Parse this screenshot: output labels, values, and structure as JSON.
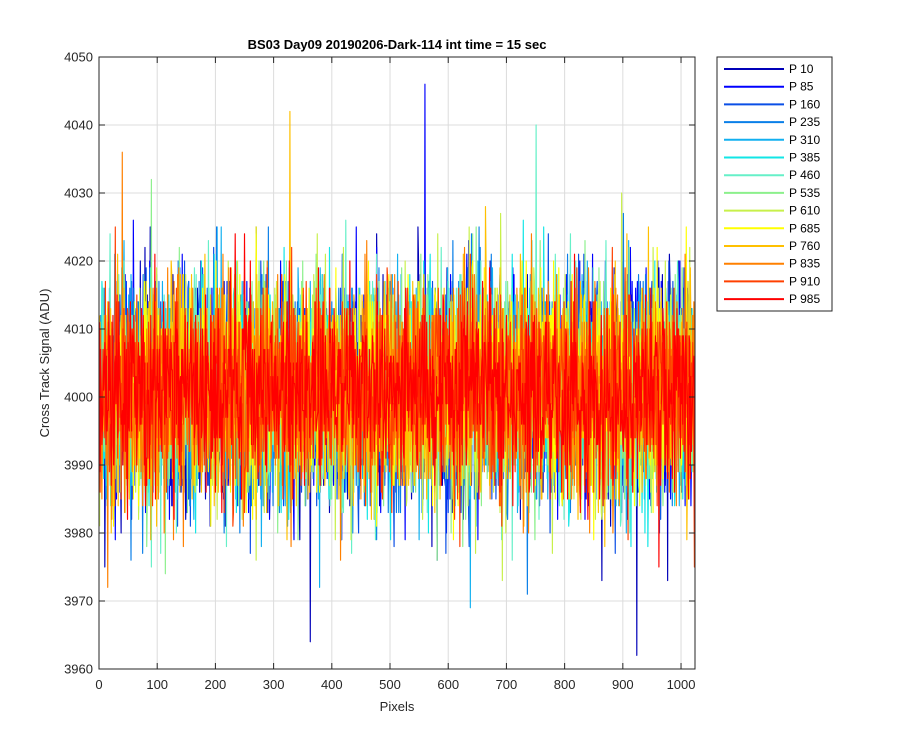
{
  "chart_data": {
    "type": "line",
    "title": "BS03 Day09 20190206-Dark-114 int time = 15 sec",
    "xlabel": "Pixels",
    "ylabel": "Cross Track Signal (ADU)",
    "xlim": [
      0,
      1024
    ],
    "ylim": [
      3960,
      4050
    ],
    "xticks": [
      0,
      100,
      200,
      300,
      400,
      500,
      600,
      700,
      800,
      900,
      1000
    ],
    "yticks": [
      3960,
      3970,
      3980,
      3990,
      4000,
      4010,
      4020,
      4030,
      4040,
      4050
    ],
    "grid": true,
    "legend_position": "outside-top-right",
    "series": [
      {
        "name": "P 10",
        "color": "#0000b8",
        "mean": 4001,
        "sd": 8.5
      },
      {
        "name": "P 85",
        "color": "#0000ff",
        "mean": 4001,
        "sd": 8.5
      },
      {
        "name": "P 160",
        "color": "#0a4fe6",
        "mean": 4001,
        "sd": 8.3
      },
      {
        "name": "P 235",
        "color": "#0a7fe8",
        "mean": 4001,
        "sd": 8.3
      },
      {
        "name": "P 310",
        "color": "#12b0f0",
        "mean": 4001,
        "sd": 8.2
      },
      {
        "name": "P 385",
        "color": "#12e6e6",
        "mean": 4001,
        "sd": 8.2
      },
      {
        "name": "P 460",
        "color": "#66f0c8",
        "mean": 4001,
        "sd": 8.0
      },
      {
        "name": "P 535",
        "color": "#8cf08c",
        "mean": 4001,
        "sd": 8.0
      },
      {
        "name": "P 610",
        "color": "#c8f04a",
        "mean": 4001,
        "sd": 8.0
      },
      {
        "name": "P 685",
        "color": "#ffff00",
        "mean": 4001,
        "sd": 8.0
      },
      {
        "name": "P 760",
        "color": "#ffc000",
        "mean": 4001,
        "sd": 8.0
      },
      {
        "name": "P 835",
        "color": "#ff8000",
        "mean": 4001,
        "sd": 7.8
      },
      {
        "name": "P 910",
        "color": "#ff4000",
        "mean": 4001,
        "sd": 7.5
      },
      {
        "name": "P 985",
        "color": "#ff0000",
        "mean": 4001,
        "sd": 7.2
      }
    ],
    "annotations": [
      {
        "series": "P 85",
        "x": 560,
        "y": 4046
      },
      {
        "series": "P 10",
        "x": 363,
        "y": 3964
      },
      {
        "series": "P 10",
        "x": 924,
        "y": 3962
      },
      {
        "series": "P 310",
        "x": 638,
        "y": 3969
      },
      {
        "series": "P 460",
        "x": 751,
        "y": 4040
      },
      {
        "series": "P 760",
        "x": 328,
        "y": 4042
      },
      {
        "series": "P 835",
        "x": 40,
        "y": 4036
      },
      {
        "series": "P 835",
        "x": 15,
        "y": 3972
      }
    ]
  }
}
